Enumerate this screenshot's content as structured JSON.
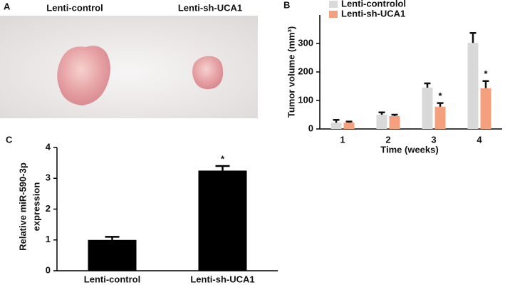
{
  "photo": {
    "letter": "A",
    "labels": [
      "Lenti-control",
      "Lenti-sh-UCA1"
    ]
  },
  "chart_data": [
    {
      "type": "bar",
      "letter": "B",
      "ylabel": "Tumor volume (mm³)",
      "xlabel": "Time (weeks)",
      "categories": [
        "1",
        "2",
        "3",
        "4"
      ],
      "series": [
        {
          "name": "Lenti-controlol",
          "color": "#d9d9d9",
          "values": [
            22,
            50,
            145,
            302
          ],
          "errors": [
            10,
            8,
            15,
            35
          ],
          "significance": [
            null,
            null,
            null,
            null
          ]
        },
        {
          "name": "Lenti-sh-UCA1",
          "color": "#f4a07f",
          "values": [
            22,
            45,
            78,
            143
          ],
          "errors": [
            4,
            5,
            13,
            25
          ],
          "significance": [
            null,
            null,
            "*",
            "*"
          ]
        }
      ],
      "ylim": [
        0,
        400
      ],
      "yticks": [
        0,
        100,
        200,
        300
      ],
      "legend": "top"
    },
    {
      "type": "bar",
      "letter": "C",
      "ylabel": [
        "Relative miR-590-3p",
        "expression"
      ],
      "categories": [
        "Lenti-control",
        "Lenti-sh-UCA1"
      ],
      "series": [
        {
          "color": "#000000",
          "values": [
            1.0,
            3.25
          ],
          "errors": [
            0.1,
            0.15
          ],
          "significance": [
            null,
            "*"
          ]
        }
      ],
      "ylim": [
        0,
        4
      ],
      "yticks": [
        0,
        1,
        2,
        3,
        4
      ]
    }
  ]
}
